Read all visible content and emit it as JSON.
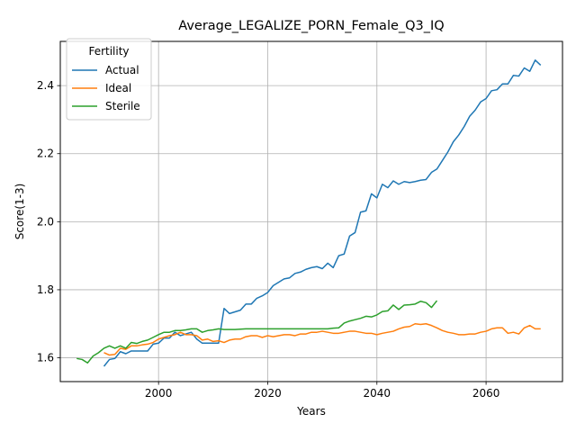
{
  "chart_data": {
    "type": "line",
    "title": "Average_LEGALIZE_PORN_Female_Q3_IQ",
    "xlabel": "Years",
    "ylabel": "Score(1-3)",
    "xlim": [
      1982,
      2074
    ],
    "ylim": [
      1.53,
      2.53
    ],
    "xticks": [
      2000,
      2020,
      2040,
      2060
    ],
    "yticks": [
      1.6,
      1.8,
      2.0,
      2.2,
      2.4
    ],
    "grid": true,
    "legend": {
      "title": "Fertility",
      "position": "top-left"
    },
    "series": [
      {
        "name": "Actual",
        "color": "#1f77b4",
        "x": [
          1990,
          1991,
          1992,
          1993,
          1994,
          1995,
          1996,
          1997,
          1998,
          1999,
          2000,
          2001,
          2002,
          2003,
          2004,
          2005,
          2006,
          2007,
          2008,
          2009,
          2010,
          2011,
          2012,
          2013,
          2014,
          2015,
          2016,
          2017,
          2018,
          2019,
          2020,
          2021,
          2022,
          2023,
          2024,
          2025,
          2026,
          2027,
          2028,
          2029,
          2030,
          2031,
          2032,
          2033,
          2034,
          2035,
          2036,
          2037,
          2038,
          2039,
          2040,
          2041,
          2042,
          2043,
          2044,
          2045,
          2046,
          2047,
          2048,
          2049,
          2050,
          2051,
          2052,
          2053,
          2054,
          2055,
          2056,
          2057,
          2058,
          2059,
          2060,
          2061,
          2062,
          2063,
          2064,
          2065,
          2066,
          2067,
          2068,
          2069,
          2070
        ],
        "values": [
          1.575,
          1.595,
          1.598,
          1.618,
          1.612,
          1.62,
          1.62,
          1.62,
          1.62,
          1.64,
          1.643,
          1.658,
          1.658,
          1.675,
          1.665,
          1.67,
          1.675,
          1.655,
          1.643,
          1.643,
          1.643,
          1.643,
          1.745,
          1.73,
          1.735,
          1.74,
          1.758,
          1.758,
          1.775,
          1.782,
          1.792,
          1.812,
          1.822,
          1.832,
          1.835,
          1.848,
          1.852,
          1.86,
          1.865,
          1.868,
          1.862,
          1.878,
          1.865,
          1.9,
          1.905,
          1.958,
          1.968,
          2.028,
          2.032,
          2.082,
          2.07,
          2.11,
          2.1,
          2.12,
          2.11,
          2.118,
          2.115,
          2.118,
          2.122,
          2.124,
          2.145,
          2.155,
          2.18,
          2.205,
          2.235,
          2.255,
          2.28,
          2.31,
          2.328,
          2.352,
          2.362,
          2.385,
          2.388,
          2.405,
          2.405,
          2.43,
          2.428,
          2.452,
          2.442,
          2.475,
          2.46
        ]
      },
      {
        "name": "Ideal",
        "color": "#ff7f0e",
        "x": [
          1990,
          1991,
          1992,
          1993,
          1994,
          1995,
          1996,
          1997,
          1998,
          1999,
          2000,
          2001,
          2002,
          2003,
          2004,
          2005,
          2006,
          2007,
          2008,
          2009,
          2010,
          2011,
          2012,
          2013,
          2014,
          2015,
          2016,
          2017,
          2018,
          2019,
          2020,
          2021,
          2022,
          2023,
          2024,
          2025,
          2026,
          2027,
          2028,
          2029,
          2030,
          2031,
          2032,
          2033,
          2034,
          2035,
          2036,
          2037,
          2038,
          2039,
          2040,
          2041,
          2042,
          2043,
          2044,
          2045,
          2046,
          2047,
          2048,
          2049,
          2050,
          2051,
          2052,
          2053,
          2054,
          2055,
          2056,
          2057,
          2058,
          2059,
          2060,
          2061,
          2062,
          2063,
          2064,
          2065,
          2066,
          2067,
          2068,
          2069,
          2070
        ],
        "values": [
          1.615,
          1.608,
          1.61,
          1.628,
          1.625,
          1.635,
          1.635,
          1.638,
          1.64,
          1.645,
          1.655,
          1.66,
          1.665,
          1.668,
          1.675,
          1.668,
          1.668,
          1.665,
          1.652,
          1.655,
          1.648,
          1.65,
          1.645,
          1.652,
          1.655,
          1.655,
          1.662,
          1.665,
          1.665,
          1.66,
          1.665,
          1.662,
          1.665,
          1.668,
          1.668,
          1.665,
          1.67,
          1.67,
          1.675,
          1.675,
          1.678,
          1.675,
          1.672,
          1.672,
          1.675,
          1.678,
          1.678,
          1.675,
          1.672,
          1.672,
          1.668,
          1.672,
          1.675,
          1.678,
          1.685,
          1.69,
          1.692,
          1.7,
          1.698,
          1.7,
          1.695,
          1.688,
          1.68,
          1.675,
          1.672,
          1.668,
          1.668,
          1.67,
          1.67,
          1.675,
          1.678,
          1.685,
          1.688,
          1.688,
          1.672,
          1.675,
          1.67,
          1.688,
          1.695,
          1.685,
          1.685
        ]
      },
      {
        "name": "Sterile",
        "color": "#2ca02c",
        "x": [
          1985,
          1986,
          1987,
          1988,
          1989,
          1990,
          1991,
          1992,
          1993,
          1994,
          1995,
          1996,
          1997,
          1998,
          1999,
          2000,
          2001,
          2002,
          2003,
          2004,
          2005,
          2006,
          2007,
          2008,
          2009,
          2010,
          2011,
          2012,
          2013,
          2014,
          2015,
          2016,
          2017,
          2018,
          2019,
          2020,
          2021,
          2022,
          2023,
          2024,
          2025,
          2026,
          2027,
          2028,
          2029,
          2030,
          2031,
          2032,
          2033,
          2034,
          2035,
          2036,
          2037,
          2038,
          2039,
          2040,
          2041,
          2042,
          2043,
          2044,
          2045,
          2046,
          2047,
          2048,
          2049,
          2050,
          2051
        ],
        "values": [
          1.598,
          1.595,
          1.585,
          1.605,
          1.615,
          1.628,
          1.635,
          1.628,
          1.635,
          1.628,
          1.645,
          1.642,
          1.648,
          1.652,
          1.66,
          1.668,
          1.675,
          1.675,
          1.68,
          1.68,
          1.682,
          1.685,
          1.685,
          1.675,
          1.68,
          1.682,
          1.685,
          1.683,
          1.683,
          1.683,
          1.684,
          1.685,
          1.685,
          1.685,
          1.685,
          1.685,
          1.685,
          1.685,
          1.685,
          1.685,
          1.685,
          1.685,
          1.685,
          1.685,
          1.685,
          1.685,
          1.685,
          1.687,
          1.688,
          1.702,
          1.708,
          1.712,
          1.716,
          1.722,
          1.72,
          1.726,
          1.736,
          1.738,
          1.755,
          1.742,
          1.755,
          1.756,
          1.758,
          1.766,
          1.762,
          1.748,
          1.768
        ]
      }
    ]
  }
}
